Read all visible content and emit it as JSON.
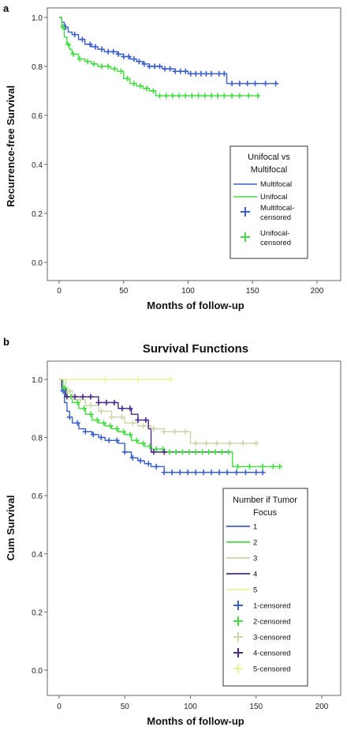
{
  "chart_data": [
    {
      "type": "line",
      "panel_label": "a",
      "title": "",
      "xlabel": "Months of follow-up",
      "ylabel": "Recurrence-free Survival",
      "xlim": [
        0,
        200
      ],
      "ylim": [
        0.0,
        1.0
      ],
      "xticks": [
        "0",
        "50",
        "100",
        "150",
        "200"
      ],
      "yticks": [
        "0.0",
        "0.2",
        "0.4",
        "0.6",
        "0.8",
        "1.0"
      ],
      "legend": {
        "title": "Unifocal vs Multifocal",
        "title_lines": [
          "Unifocal vs",
          "Multifocal"
        ],
        "placement": "bottom-right",
        "entries": [
          {
            "label": "Multifocal",
            "kind": "line",
            "color": "#3a5fcd"
          },
          {
            "label": "Unifocal",
            "kind": "line",
            "color": "#44dd44"
          },
          {
            "label": "Multifocal-censored",
            "label_lines": [
              "Multifocal-",
              "censored"
            ],
            "kind": "marker",
            "color": "#3a5fcd"
          },
          {
            "label": "Unifocal-censored",
            "label_lines": [
              "Unifocal-",
              "censored"
            ],
            "kind": "marker",
            "color": "#44dd44"
          }
        ]
      },
      "series": [
        {
          "name": "Multifocal",
          "color": "#3a5fcd",
          "x": [
            0,
            2,
            4,
            7,
            10,
            15,
            20,
            25,
            30,
            35,
            40,
            45,
            50,
            55,
            60,
            65,
            70,
            75,
            80,
            85,
            90,
            95,
            100,
            110,
            120,
            128,
            130,
            140,
            150,
            160,
            168
          ],
          "y": [
            1.0,
            0.98,
            0.96,
            0.94,
            0.93,
            0.91,
            0.89,
            0.88,
            0.87,
            0.86,
            0.86,
            0.85,
            0.84,
            0.83,
            0.82,
            0.81,
            0.8,
            0.8,
            0.79,
            0.79,
            0.78,
            0.78,
            0.77,
            0.77,
            0.77,
            0.77,
            0.73,
            0.73,
            0.73,
            0.73,
            0.73
          ],
          "censored_x": [
            5,
            12,
            18,
            24,
            28,
            33,
            38,
            42,
            46,
            50,
            54,
            58,
            62,
            66,
            70,
            74,
            78,
            82,
            86,
            90,
            94,
            98,
            102,
            106,
            110,
            114,
            118,
            124,
            128,
            134,
            140,
            146,
            152,
            160,
            168
          ]
        },
        {
          "name": "Unifocal",
          "color": "#44dd44",
          "x": [
            0,
            2,
            4,
            6,
            8,
            10,
            15,
            20,
            25,
            30,
            40,
            45,
            50,
            55,
            60,
            65,
            70,
            75,
            80,
            100,
            130,
            155
          ],
          "y": [
            1.0,
            0.96,
            0.92,
            0.89,
            0.87,
            0.85,
            0.83,
            0.82,
            0.81,
            0.8,
            0.79,
            0.78,
            0.75,
            0.73,
            0.72,
            0.71,
            0.7,
            0.68,
            0.68,
            0.68,
            0.68,
            0.68
          ],
          "censored_x": [
            3,
            7,
            11,
            16,
            22,
            27,
            33,
            38,
            43,
            48,
            53,
            58,
            63,
            68,
            73,
            78,
            83,
            88,
            93,
            98,
            103,
            108,
            113,
            118,
            123,
            128,
            134,
            140,
            147,
            154
          ]
        }
      ]
    },
    {
      "type": "line",
      "panel_label": "b",
      "title": "Survival Functions",
      "xlabel": "Months of follow-up",
      "ylabel": "Cum Survival",
      "xlim": [
        0,
        200
      ],
      "ylim": [
        0.0,
        1.0
      ],
      "xticks": [
        "0",
        "50",
        "100",
        "150",
        "200"
      ],
      "yticks": [
        "0.0",
        "0.2",
        "0.4",
        "0.6",
        "0.8",
        "1.0"
      ],
      "legend": {
        "title": "Number if Tumor Focus",
        "title_lines": [
          "Number if Tumor",
          "Focus"
        ],
        "placement": "bottom-right",
        "entries": [
          {
            "label": "1",
            "kind": "line",
            "color": "#3a5fcd"
          },
          {
            "label": "2",
            "kind": "line",
            "color": "#44dd44"
          },
          {
            "label": "3",
            "kind": "line",
            "color": "#c8d8a8"
          },
          {
            "label": "4",
            "kind": "line",
            "color": "#4a2a8a"
          },
          {
            "label": "5",
            "kind": "line",
            "color": "#eaf59a"
          },
          {
            "label": "1-censored",
            "kind": "marker",
            "color": "#3a5fcd"
          },
          {
            "label": "2-censored",
            "kind": "marker",
            "color": "#44dd44"
          },
          {
            "label": "3-censored",
            "kind": "marker",
            "color": "#c8d8a8"
          },
          {
            "label": "4-censored",
            "kind": "marker",
            "color": "#4a2a8a"
          },
          {
            "label": "5-censored",
            "kind": "marker",
            "color": "#eaf59a"
          }
        ]
      },
      "series": [
        {
          "name": "1",
          "color": "#3a5fcd",
          "x": [
            0,
            2,
            4,
            6,
            8,
            10,
            15,
            20,
            25,
            30,
            35,
            40,
            45,
            50,
            55,
            60,
            65,
            70,
            75,
            80,
            100,
            130,
            155
          ],
          "y": [
            1.0,
            0.96,
            0.92,
            0.89,
            0.87,
            0.85,
            0.83,
            0.82,
            0.81,
            0.8,
            0.79,
            0.79,
            0.78,
            0.75,
            0.73,
            0.72,
            0.71,
            0.7,
            0.7,
            0.68,
            0.68,
            0.68,
            0.68
          ],
          "censored_x": [
            3,
            8,
            14,
            20,
            26,
            32,
            38,
            44,
            50,
            56,
            62,
            68,
            74,
            80,
            86,
            92,
            98,
            104,
            110,
            116,
            122,
            128,
            135,
            142,
            150,
            155
          ]
        },
        {
          "name": "2",
          "color": "#44dd44",
          "x": [
            0,
            3,
            6,
            10,
            15,
            20,
            25,
            30,
            35,
            40,
            45,
            50,
            55,
            60,
            65,
            70,
            80,
            100,
            130,
            132,
            168
          ],
          "y": [
            1.0,
            0.97,
            0.94,
            0.92,
            0.9,
            0.88,
            0.86,
            0.85,
            0.84,
            0.83,
            0.82,
            0.81,
            0.79,
            0.78,
            0.77,
            0.76,
            0.75,
            0.75,
            0.75,
            0.7,
            0.7
          ],
          "censored_x": [
            4,
            9,
            14,
            19,
            24,
            29,
            34,
            39,
            44,
            49,
            54,
            59,
            64,
            69,
            74,
            79,
            84,
            89,
            94,
            99,
            104,
            109,
            114,
            119,
            124,
            129,
            136,
            145,
            155,
            163,
            168
          ]
        },
        {
          "name": "3",
          "color": "#c8d8a8",
          "x": [
            0,
            5,
            10,
            20,
            30,
            40,
            50,
            60,
            70,
            80,
            95,
            100,
            120,
            150
          ],
          "y": [
            1.0,
            0.96,
            0.93,
            0.91,
            0.89,
            0.87,
            0.85,
            0.84,
            0.83,
            0.82,
            0.82,
            0.78,
            0.78,
            0.78
          ],
          "censored_x": [
            8,
            16,
            24,
            32,
            40,
            48,
            56,
            64,
            72,
            80,
            88,
            96,
            104,
            112,
            120,
            130,
            140,
            150
          ]
        },
        {
          "name": "4",
          "color": "#4a2a8a",
          "x": [
            0,
            2,
            5,
            25,
            30,
            45,
            55,
            60,
            68,
            70,
            130
          ],
          "y": [
            1.0,
            0.97,
            0.94,
            0.94,
            0.92,
            0.9,
            0.88,
            0.86,
            0.83,
            0.75,
            0.75
          ],
          "censored_x": [
            6,
            12,
            18,
            24,
            30,
            36,
            42,
            48,
            54,
            60,
            66,
            72,
            80
          ]
        },
        {
          "name": "5",
          "color": "#eaf59a",
          "x": [
            0,
            85
          ],
          "y": [
            1.0,
            1.0
          ],
          "censored_x": [
            35,
            60,
            85
          ]
        }
      ]
    }
  ]
}
